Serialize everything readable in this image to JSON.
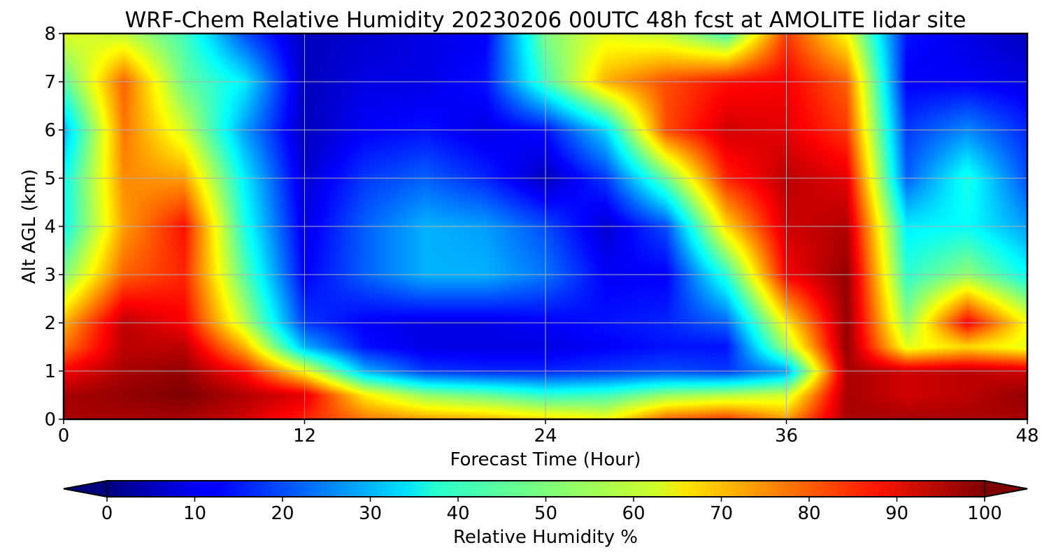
{
  "chart_data": {
    "type": "heatmap",
    "title": "WRF-Chem Relative Humidity 20230206 00UTC 48h fcst at AMOLITE lidar site",
    "xlabel": "Forecast Time (Hour)",
    "ylabel": "Alt AGL (km)",
    "xlim": [
      0,
      48
    ],
    "ylim": [
      0,
      8
    ],
    "x_ticks": [
      0,
      12,
      24,
      36,
      48
    ],
    "y_ticks": [
      0,
      1,
      2,
      3,
      4,
      5,
      6,
      7,
      8
    ],
    "grid": true,
    "colormap": "jet",
    "colorbar": {
      "label": "Relative Humidity %",
      "range": [
        0,
        100
      ],
      "ticks": [
        0,
        10,
        20,
        30,
        40,
        50,
        60,
        70,
        80,
        90,
        100
      ],
      "orientation": "horizontal",
      "placement": "bottom",
      "extend": "both"
    },
    "altitudes_km": [
      0,
      0.5,
      1,
      1.5,
      2,
      3,
      4,
      5,
      6,
      7,
      8
    ],
    "times_hour": [
      0,
      3,
      6,
      9,
      12,
      15,
      18,
      21,
      24,
      27,
      30,
      33,
      36,
      39,
      42,
      45,
      48
    ],
    "values": [
      [
        96,
        96,
        96,
        92,
        84,
        76,
        72,
        70,
        66,
        62,
        78,
        82,
        72,
        96,
        96,
        96,
        96
      ],
      [
        96,
        98,
        100,
        95,
        90,
        64,
        52,
        48,
        42,
        44,
        52,
        55,
        58,
        96,
        92,
        94,
        98
      ],
      [
        88,
        96,
        98,
        86,
        62,
        30,
        18,
        16,
        16,
        18,
        20,
        18,
        28,
        96,
        92,
        94,
        92
      ],
      [
        76,
        94,
        94,
        70,
        30,
        14,
        10,
        10,
        10,
        12,
        14,
        14,
        54,
        98,
        60,
        66,
        60
      ],
      [
        70,
        94,
        88,
        56,
        18,
        12,
        10,
        10,
        12,
        14,
        16,
        22,
        64,
        98,
        52,
        88,
        62
      ],
      [
        50,
        78,
        84,
        46,
        12,
        22,
        30,
        30,
        24,
        12,
        12,
        42,
        88,
        98,
        42,
        52,
        38
      ],
      [
        38,
        72,
        86,
        40,
        10,
        22,
        30,
        28,
        20,
        8,
        20,
        66,
        92,
        95,
        36,
        38,
        28
      ],
      [
        38,
        74,
        72,
        36,
        8,
        18,
        22,
        16,
        6,
        18,
        48,
        84,
        94,
        90,
        22,
        40,
        20
      ],
      [
        30,
        76,
        58,
        28,
        6,
        12,
        14,
        10,
        14,
        34,
        80,
        92,
        90,
        82,
        18,
        26,
        16
      ],
      [
        46,
        78,
        48,
        36,
        6,
        10,
        10,
        14,
        44,
        70,
        80,
        86,
        88,
        78,
        12,
        12,
        10
      ],
      [
        60,
        56,
        44,
        20,
        6,
        8,
        10,
        12,
        50,
        60,
        56,
        44,
        82,
        62,
        14,
        10,
        6
      ]
    ]
  }
}
